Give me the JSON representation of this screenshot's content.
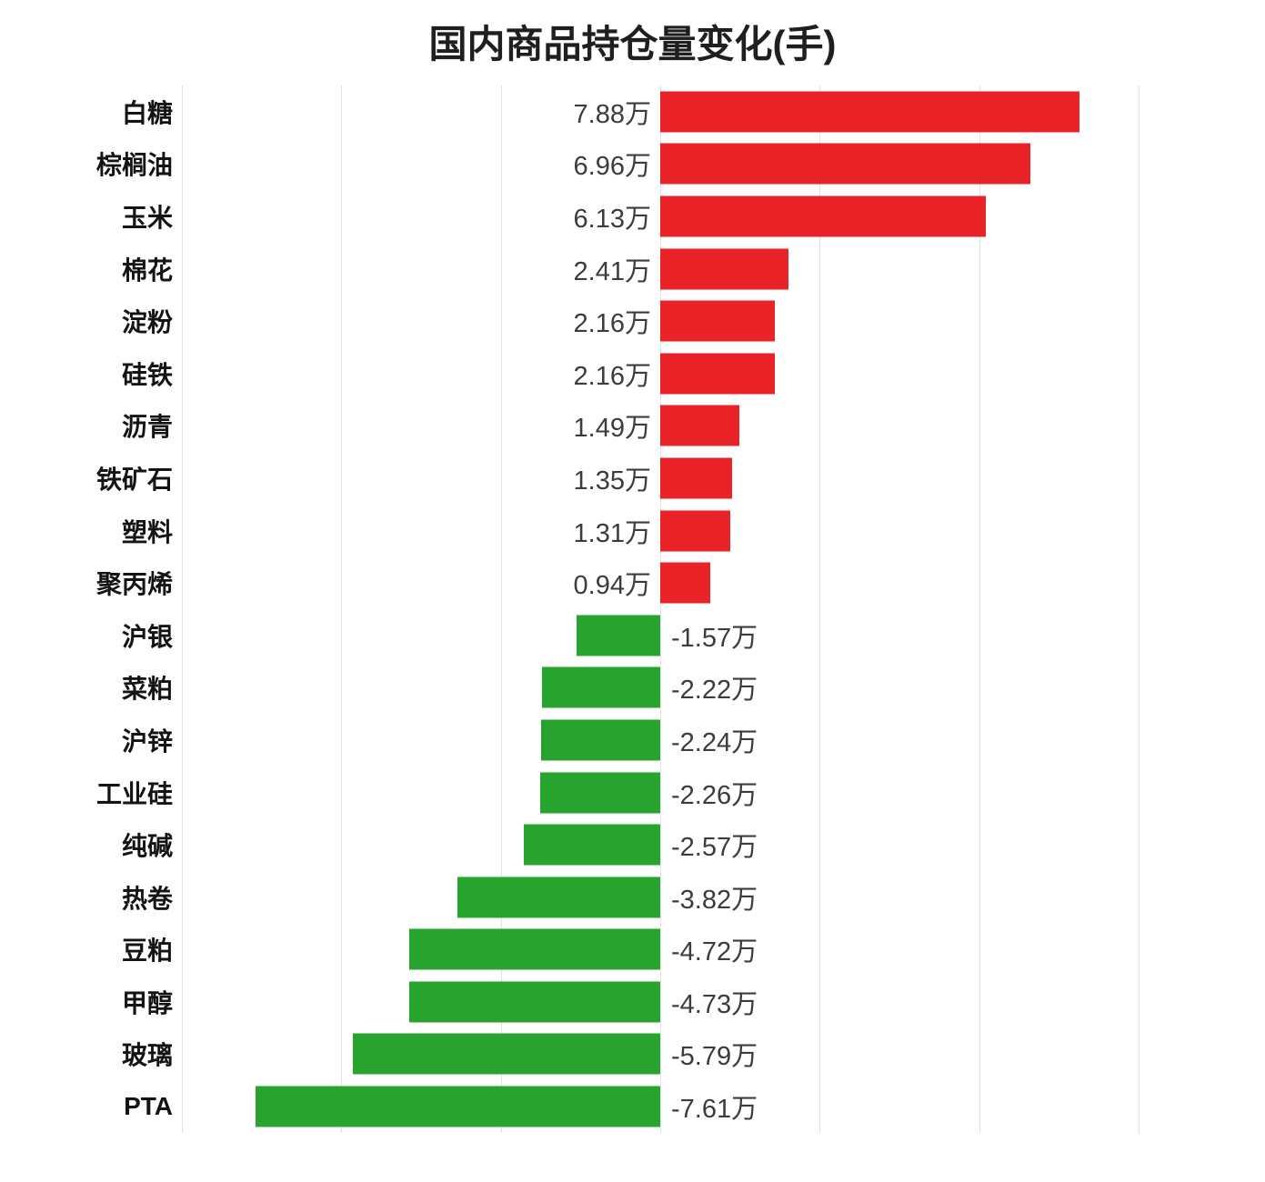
{
  "chart_data": {
    "type": "bar",
    "orientation": "horizontal",
    "title": "国内商品持仓量变化(手)",
    "unit": "万",
    "categories": [
      "白糖",
      "棕榈油",
      "玉米",
      "棉花",
      "淀粉",
      "硅铁",
      "沥青",
      "铁矿石",
      "塑料",
      "聚丙烯",
      "沪银",
      "菜粕",
      "沪锌",
      "工业硅",
      "纯碱",
      "热卷",
      "豆粕",
      "甲醇",
      "玻璃",
      "PTA"
    ],
    "values": [
      7.88,
      6.96,
      6.13,
      2.41,
      2.16,
      2.16,
      1.49,
      1.35,
      1.31,
      0.94,
      -1.57,
      -2.22,
      -2.24,
      -2.26,
      -2.57,
      -3.82,
      -4.72,
      -4.73,
      -5.79,
      -7.61
    ],
    "value_labels": [
      "7.88万",
      "6.96万",
      "6.13万",
      "2.41万",
      "2.16万",
      "2.16万",
      "1.49万",
      "1.35万",
      "1.31万",
      "0.94万",
      "-1.57万",
      "-2.22万",
      "-2.24万",
      "-2.26万",
      "-2.57万",
      "-3.82万",
      "-4.72万",
      "-4.73万",
      "-5.79万",
      "-7.61万"
    ],
    "xlim": [
      -9,
      9
    ],
    "grid_interval": 3,
    "grid": true,
    "legend": false,
    "positive_color": "#ea2329",
    "negative_color": "#28a32e",
    "grid_color": "#e3e3e3"
  }
}
